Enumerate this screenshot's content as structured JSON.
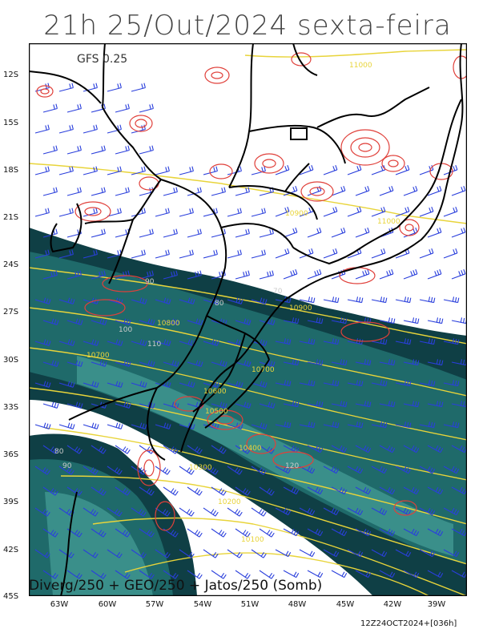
{
  "title": "21h 25/Out/2024 sexta-feira",
  "model_label": "GFS 0.25",
  "bottom_caption": "Diverg/250 + GEO/250 + Jatos/250 (Somb)",
  "footer": "12Z24OCT2024+[036h]",
  "lat_labels": [
    "12S",
    "15S",
    "18S",
    "21S",
    "24S",
    "27S",
    "30S",
    "33S",
    "36S",
    "39S",
    "42S",
    "45S"
  ],
  "lon_labels": [
    "63W",
    "60W",
    "57W",
    "54W",
    "51W",
    "48W",
    "45W",
    "42W",
    "39W"
  ],
  "contour_labels": {
    "geo": [
      "11000",
      "11000",
      "10900",
      "10900",
      "10800",
      "10700",
      "10700",
      "10600",
      "10500",
      "10400",
      "10300",
      "10200",
      "10100"
    ],
    "jet": [
      "70",
      "80",
      "90",
      "100",
      "110",
      "120",
      "80",
      "90"
    ]
  },
  "colors": {
    "jet_dark": "#0f3f45",
    "jet_mid": "#1f6a6a",
    "jet_light": "#3a8f8a",
    "geo_line": "#e8d43a",
    "diverg": "#e0403a",
    "barb": "#2a3fdc",
    "border": "#000000"
  }
}
